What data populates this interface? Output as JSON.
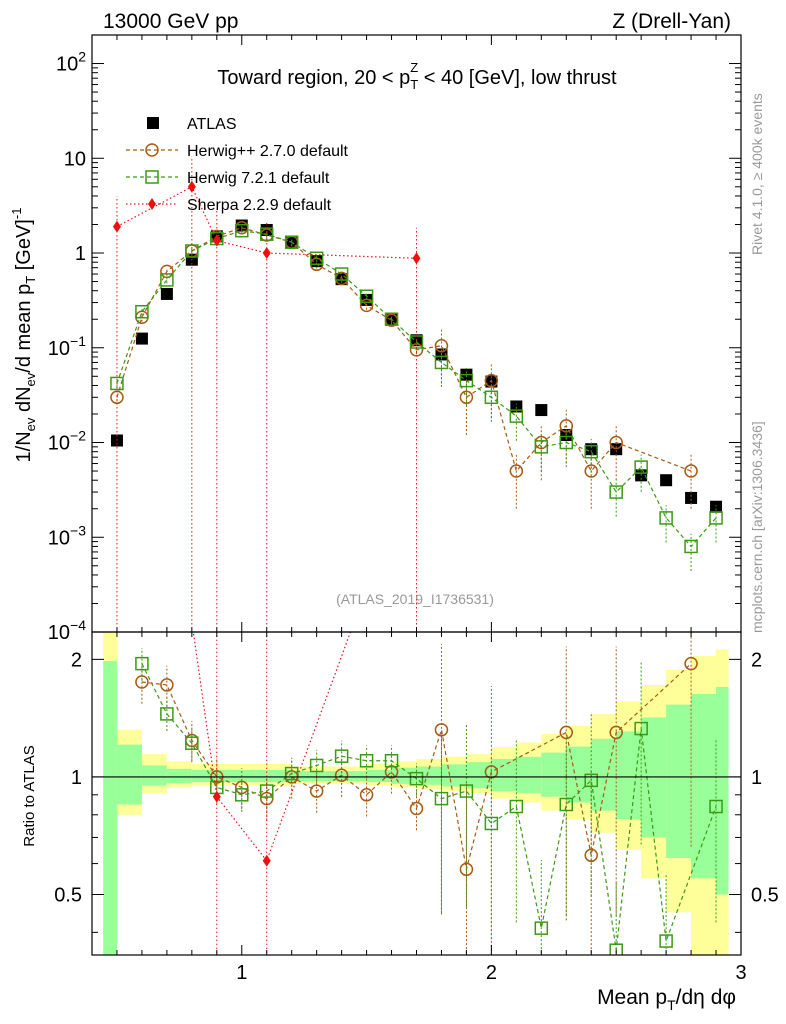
{
  "header": {
    "left": "13000 GeV pp",
    "right": "Z (Drell-Yan)"
  },
  "side_labels": {
    "rivet": "Rivet 4.1.0, ≥ 400k events",
    "mcplots": "mcplots.cern.ch [arXiv:1306.3436]"
  },
  "analysis_id": "(ATLAS_2019_I1736531)",
  "colors": {
    "atlas": "#000000",
    "herwigpp": "#a85a14",
    "herwig7": "#3a9a14",
    "sherpa": "#ee1010",
    "band_outer": "#ffff99",
    "band_inner": "#99ff99"
  },
  "chart_data": [
    {
      "type": "scatter",
      "panel": "main",
      "title": "Toward region, 20 < pTZ < 40 [GeV], low thrust",
      "title_parts": [
        "Toward region, 20 < p",
        "Z",
        "T",
        " < 40 [GeV], low thrust"
      ],
      "ylabel": "1/Nev dNev/d mean pT [GeV]^-1",
      "ylabel_parts": {
        "a": "1/N",
        "b": "ev",
        "c": " dN",
        "d": "ev",
        "e": "/d mean p",
        "f": "T",
        "g": " [GeV]",
        "h": "-1"
      },
      "yscale": "log",
      "xlim": [
        0.4,
        3.0
      ],
      "ylim": [
        0.0001,
        200
      ],
      "ytick_labels": [
        {
          "value": 100,
          "base": "10",
          "exp": "2"
        },
        {
          "value": 10,
          "base": "10",
          "exp": ""
        },
        {
          "value": 1,
          "base": "1",
          "exp": ""
        },
        {
          "value": 0.1,
          "base": "10",
          "exp": "−1"
        },
        {
          "value": 0.01,
          "base": "10",
          "exp": "−2"
        },
        {
          "value": 0.001,
          "base": "10",
          "exp": "−3"
        },
        {
          "value": 0.0001,
          "base": "10",
          "exp": "−4"
        }
      ],
      "legend": [
        "ATLAS",
        "Herwig++ 2.7.0 default",
        "Herwig 7.2.1 default",
        "Sherpa 2.2.9 default"
      ],
      "legend_position": "top-left",
      "series": [
        {
          "name": "ATLAS",
          "marker": "filled-square",
          "x": [
            0.5,
            0.6,
            0.7,
            0.8,
            0.9,
            1.0,
            1.1,
            1.2,
            1.3,
            1.4,
            1.5,
            1.6,
            1.7,
            1.8,
            1.9,
            2.0,
            2.1,
            2.2,
            2.3,
            2.4,
            2.5,
            2.6,
            2.7,
            2.8,
            2.9
          ],
          "y": [
            0.0105,
            0.125,
            0.37,
            0.85,
            1.5,
            1.95,
            1.75,
            1.3,
            0.82,
            0.53,
            0.32,
            0.2,
            0.12,
            0.085,
            0.052,
            0.044,
            0.024,
            0.022,
            0.012,
            0.0085,
            0.0085,
            0.0045,
            0.004,
            0.0026,
            0.0021
          ]
        },
        {
          "name": "Herwig++ 2.7.0 default",
          "marker": "open-circle",
          "x": [
            0.5,
            0.6,
            0.7,
            0.8,
            0.9,
            1.0,
            1.1,
            1.2,
            1.3,
            1.4,
            1.5,
            1.6,
            1.7,
            1.8,
            1.9,
            2.0,
            2.1,
            2.2,
            2.3,
            2.4,
            2.5,
            2.8
          ],
          "y": [
            0.03,
            0.21,
            0.64,
            1.05,
            1.5,
            1.85,
            1.55,
            1.3,
            0.76,
            0.54,
            0.28,
            0.195,
            0.095,
            0.105,
            0.03,
            0.045,
            0.005,
            0.01,
            0.015,
            0.005,
            0.01,
            0.005
          ]
        },
        {
          "name": "Herwig 7.2.1 default",
          "marker": "open-square",
          "x": [
            0.5,
            0.6,
            0.7,
            0.8,
            0.9,
            1.0,
            1.1,
            1.2,
            1.3,
            1.4,
            1.5,
            1.6,
            1.7,
            1.8,
            1.9,
            2.0,
            2.1,
            2.2,
            2.3,
            2.4,
            2.5,
            2.6,
            2.7,
            2.8,
            2.9
          ],
          "y": [
            0.042,
            0.24,
            0.52,
            1.05,
            1.42,
            1.72,
            1.58,
            1.3,
            0.88,
            0.6,
            0.35,
            0.2,
            0.115,
            0.07,
            0.045,
            0.03,
            0.019,
            0.009,
            0.01,
            0.008,
            0.003,
            0.0055,
            0.0016,
            0.0008,
            0.0016
          ]
        },
        {
          "name": "Sherpa 2.2.9 default",
          "marker": "filled-diamond",
          "x": [
            0.5,
            0.8,
            0.9,
            1.1,
            1.7
          ],
          "y": [
            1.9,
            5.0,
            1.35,
            1.0,
            0.88
          ]
        }
      ]
    },
    {
      "type": "scatter",
      "panel": "ratio",
      "ylabel": "Ratio to ATLAS",
      "xlabel": "Mean pT/dη dφ",
      "xlabel_parts": [
        "Mean p",
        "T",
        "/dη dφ"
      ],
      "xlim": [
        0.4,
        3.0
      ],
      "ylim": [
        0.35,
        2.35
      ],
      "yscale": "log",
      "yticks": [
        0.5,
        1,
        2
      ],
      "ytick_labels": [
        "0.5",
        "1",
        "2"
      ],
      "xticks": [
        1,
        2,
        3
      ],
      "xtick_labels": [
        "1",
        "2",
        "3"
      ],
      "series": [
        {
          "name": "Herwig++ 2.7.0 default",
          "x": [
            0.6,
            0.7,
            0.8,
            0.9,
            1.0,
            1.1,
            1.2,
            1.3,
            1.4,
            1.5,
            1.6,
            1.7,
            1.8,
            1.9,
            2.0,
            2.3,
            2.4,
            2.5,
            2.8
          ],
          "y": [
            1.75,
            1.72,
            1.24,
            1.0,
            0.94,
            0.88,
            1.0,
            0.92,
            1.01,
            0.9,
            1.03,
            0.83,
            1.32,
            0.58,
            1.03,
            1.3,
            0.63,
            1.3,
            1.95
          ]
        },
        {
          "name": "Herwig 7.2.1 default",
          "x": [
            0.6,
            0.7,
            0.8,
            0.9,
            1.0,
            1.1,
            1.2,
            1.3,
            1.4,
            1.5,
            1.6,
            1.7,
            1.8,
            1.9,
            2.0,
            2.1,
            2.2,
            2.3,
            2.4,
            2.5,
            2.6,
            2.7,
            2.9
          ],
          "y": [
            1.95,
            1.45,
            1.22,
            0.94,
            0.9,
            0.92,
            1.02,
            1.07,
            1.13,
            1.1,
            1.1,
            0.99,
            0.88,
            0.92,
            0.76,
            0.84,
            0.41,
            0.85,
            0.98,
            0.36,
            1.33,
            0.38,
            0.84
          ]
        },
        {
          "name": "Sherpa 2.2.9 default",
          "x": [
            0.9,
            1.1
          ],
          "y": [
            0.89,
            0.61
          ]
        }
      ]
    }
  ]
}
